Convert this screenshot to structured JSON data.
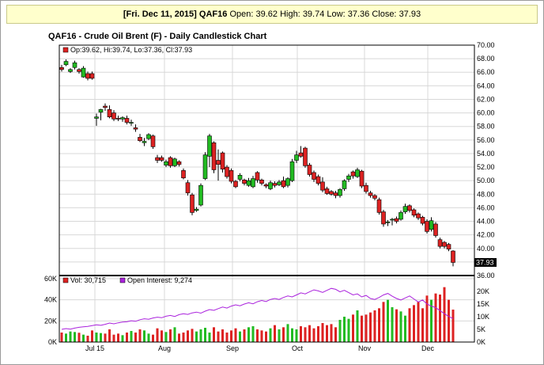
{
  "banner": {
    "date": "[Fri. Dec 11, 2015]",
    "symbol": "QAF16",
    "open_label": "Open:",
    "open": "39.62",
    "high_label": "High:",
    "high": "39.74",
    "low_label": "Low:",
    "low": "37.36",
    "close_label": "Close:",
    "close": "37.93"
  },
  "colors": {
    "up": "#22bb22",
    "down": "#dd2222",
    "oi": "#aa22dd",
    "accent": "#ffffcc"
  },
  "chart_data": [
    {
      "type": "candlestick",
      "title": "QAF16 - Crude Oil Brent (F) - Daily Candlestick Chart",
      "legend": "Op:39.62, Hi:39.74, Lo:37.36, Cl:37.93",
      "last_price_label": "37.93",
      "ylim": [
        36,
        70
      ],
      "yticks": [
        "70.00",
        "68.00",
        "66.00",
        "64.00",
        "62.00",
        "60.00",
        "58.00",
        "56.00",
        "54.00",
        "52.00",
        "50.00",
        "48.00",
        "46.00",
        "44.00",
        "42.00",
        "40.00",
        "38.00",
        "36.00"
      ],
      "xticks": [
        "Jul 15",
        "Aug",
        "Sep",
        "Oct",
        "Nov",
        "Dec"
      ],
      "grid": true,
      "candles": [
        [
          66.7,
          67.1,
          66.1,
          66.4
        ],
        [
          67.1,
          67.9,
          66.9,
          67.6
        ],
        [
          66.1,
          66.6,
          65.9,
          66.4
        ],
        [
          66.7,
          67.7,
          66.4,
          67.4
        ],
        [
          66.4,
          66.6,
          65.8,
          66.1
        ],
        [
          65.3,
          66.9,
          65.2,
          66.6
        ],
        [
          65.8,
          66.1,
          64.8,
          65.1
        ],
        [
          65.8,
          66.1,
          64.9,
          65.1
        ],
        [
          59.2,
          59.9,
          58.1,
          59.4
        ],
        [
          60.1,
          60.6,
          58.9,
          60.5
        ],
        [
          61.0,
          61.4,
          60.3,
          60.8
        ],
        [
          60.5,
          61.1,
          59.2,
          59.4
        ],
        [
          60.0,
          60.4,
          58.8,
          59.1
        ],
        [
          59.2,
          59.6,
          58.8,
          59.1
        ],
        [
          59.1,
          59.5,
          58.7,
          59.3
        ],
        [
          59.2,
          59.6,
          58.3,
          58.6
        ],
        [
          58.5,
          59.0,
          58.1,
          58.6
        ],
        [
          57.8,
          58.3,
          57.2,
          57.6
        ],
        [
          56.4,
          56.9,
          55.7,
          55.9
        ],
        [
          55.6,
          56.3,
          55.1,
          55.8
        ],
        [
          56.2,
          57.0,
          56.0,
          56.8
        ],
        [
          56.6,
          56.8,
          54.7,
          55.0
        ],
        [
          53.4,
          53.8,
          52.6,
          53.0
        ],
        [
          53.4,
          53.7,
          52.8,
          53.0
        ],
        [
          52.3,
          53.1,
          52.0,
          52.8
        ],
        [
          53.4,
          53.6,
          51.9,
          52.2
        ],
        [
          52.2,
          53.4,
          52.0,
          53.2
        ],
        [
          52.8,
          53.0,
          52.1,
          52.4
        ],
        [
          51.5,
          51.8,
          50.2,
          50.4
        ],
        [
          49.7,
          50.1,
          47.8,
          48.2
        ],
        [
          47.9,
          48.2,
          44.9,
          45.3
        ],
        [
          45.6,
          46.1,
          45.4,
          45.8
        ],
        [
          46.4,
          49.6,
          46.2,
          49.3
        ],
        [
          50.3,
          54.2,
          50.1,
          53.8
        ],
        [
          53.6,
          56.9,
          52.0,
          56.6
        ],
        [
          55.6,
          55.8,
          51.1,
          51.6
        ],
        [
          53.0,
          54.6,
          50.0,
          52.4
        ],
        [
          54.1,
          54.3,
          51.2,
          51.7
        ],
        [
          52.0,
          52.3,
          50.3,
          50.6
        ],
        [
          51.5,
          51.8,
          49.6,
          49.9
        ],
        [
          49.9,
          50.1,
          48.9,
          49.1
        ],
        [
          50.2,
          51.1,
          49.9,
          50.8
        ],
        [
          50.1,
          50.3,
          49.3,
          49.6
        ],
        [
          49.3,
          50.4,
          49.1,
          50.0
        ],
        [
          49.1,
          50.7,
          48.9,
          50.3
        ],
        [
          51.2,
          51.4,
          49.7,
          50.1
        ],
        [
          50.1,
          50.3,
          49.3,
          49.6
        ],
        [
          49.4,
          49.6,
          48.9,
          49.2
        ],
        [
          48.8,
          50.0,
          48.6,
          49.7
        ],
        [
          49.6,
          49.9,
          49.0,
          49.3
        ],
        [
          49.4,
          50.1,
          49.2,
          49.8
        ],
        [
          50.0,
          50.6,
          48.9,
          49.1
        ],
        [
          49.3,
          50.5,
          49.0,
          50.3
        ],
        [
          50.0,
          53.2,
          49.8,
          52.8
        ],
        [
          53.0,
          54.4,
          52.6,
          53.8
        ],
        [
          54.1,
          55.1,
          53.4,
          53.6
        ],
        [
          54.8,
          55.0,
          51.9,
          52.2
        ],
        [
          52.3,
          52.6,
          50.6,
          50.9
        ],
        [
          51.2,
          51.5,
          49.8,
          50.2
        ],
        [
          50.6,
          50.9,
          49.3,
          49.6
        ],
        [
          49.8,
          50.5,
          48.3,
          48.6
        ],
        [
          48.8,
          49.1,
          47.9,
          48.1
        ],
        [
          48.4,
          48.6,
          47.8,
          48.0
        ],
        [
          48.2,
          48.5,
          47.4,
          47.8
        ],
        [
          47.8,
          48.9,
          47.5,
          48.7
        ],
        [
          48.8,
          50.2,
          48.5,
          50.0
        ],
        [
          50.2,
          51.0,
          49.8,
          50.7
        ],
        [
          51.3,
          51.5,
          50.3,
          50.7
        ],
        [
          50.6,
          51.9,
          50.4,
          51.6
        ],
        [
          51.4,
          51.6,
          48.9,
          49.2
        ],
        [
          49.3,
          49.7,
          48.1,
          48.4
        ],
        [
          48.2,
          48.5,
          47.5,
          47.8
        ],
        [
          47.8,
          48.0,
          47.1,
          47.4
        ],
        [
          47.2,
          47.5,
          45.0,
          45.3
        ],
        [
          45.4,
          45.7,
          43.2,
          43.6
        ],
        [
          43.8,
          44.2,
          43.3,
          43.9
        ],
        [
          44.2,
          44.5,
          43.4,
          44.3
        ],
        [
          44.4,
          44.7,
          43.7,
          44.0
        ],
        [
          44.3,
          45.6,
          44.1,
          45.3
        ],
        [
          45.4,
          46.6,
          45.1,
          46.2
        ],
        [
          46.3,
          46.5,
          45.3,
          45.6
        ],
        [
          45.7,
          45.9,
          44.6,
          44.9
        ],
        [
          45.1,
          45.3,
          44.2,
          44.5
        ],
        [
          44.6,
          44.8,
          43.4,
          43.7
        ],
        [
          44.0,
          44.3,
          42.2,
          42.5
        ],
        [
          42.8,
          44.6,
          42.5,
          44.1
        ],
        [
          43.6,
          43.9,
          41.6,
          41.9
        ],
        [
          41.3,
          41.6,
          40.0,
          40.3
        ],
        [
          40.9,
          41.1,
          40.0,
          40.3
        ],
        [
          40.6,
          40.8,
          39.6,
          39.9
        ],
        [
          39.62,
          39.74,
          37.36,
          37.93
        ]
      ]
    },
    {
      "type": "bar",
      "legend_volume_label": "Vol: 30,715",
      "legend_oi_label": "Open Interest: 9,274",
      "ylim": [
        0,
        60000
      ],
      "yticks_left": [
        "60K",
        "40K",
        "20K",
        "0K"
      ],
      "yticks_right": [
        "20K",
        "15K",
        "10K",
        "5K",
        "0K"
      ],
      "oi_ylim": [
        0,
        25000
      ],
      "volume": [
        9000,
        8000,
        10000,
        9500,
        8800,
        7000,
        6000,
        11000,
        9000,
        8500,
        8000,
        12000,
        7000,
        8000,
        6500,
        9000,
        10500,
        9000,
        12000,
        11000,
        8000,
        7000,
        13000,
        11000,
        9500,
        12000,
        14000,
        8000,
        9000,
        11000,
        12500,
        10000,
        12000,
        13500,
        9000,
        14000,
        10000,
        12000,
        9000,
        11000,
        13000,
        10000,
        12000,
        14000,
        15000,
        12000,
        11000,
        10000,
        13000,
        16000,
        12000,
        14000,
        17000,
        13000,
        12000,
        15000,
        14000,
        16000,
        13000,
        15000,
        18000,
        16000,
        17000,
        14000,
        21000,
        24000,
        22000,
        26000,
        30000,
        25000,
        26000,
        28000,
        30000,
        32000,
        38000,
        40000,
        33000,
        31000,
        29000,
        25000,
        32000,
        35000,
        38000,
        32000,
        44000,
        40000,
        46000,
        45000,
        52000,
        40000,
        30715
      ],
      "open_interest": [
        5000,
        5300,
        5100,
        5500,
        5800,
        6000,
        6200,
        6500,
        6800,
        6600,
        7000,
        7500,
        7200,
        7600,
        7900,
        8000,
        8400,
        8200,
        8800,
        9200,
        9000,
        9500,
        9800,
        9600,
        10200,
        10500,
        10100,
        10800,
        11200,
        10900,
        11500,
        11800,
        11400,
        12200,
        12800,
        12500,
        13200,
        13800,
        13400,
        14200,
        14700,
        14300,
        15000,
        15500,
        15100,
        15900,
        16400,
        16000,
        16800,
        17200,
        16800,
        17600,
        18200,
        17800,
        18600,
        19400,
        19000,
        19800,
        20600,
        20200,
        19600,
        20400,
        21200,
        20800,
        19800,
        20400,
        19500,
        18600,
        19000,
        17800,
        18400,
        17200,
        16800,
        17600,
        18600,
        19200,
        18100,
        17200,
        16600,
        17400,
        18200,
        17000,
        15800,
        16600,
        15000,
        14200,
        13600,
        12400,
        11200,
        10100,
        9274
      ]
    }
  ]
}
